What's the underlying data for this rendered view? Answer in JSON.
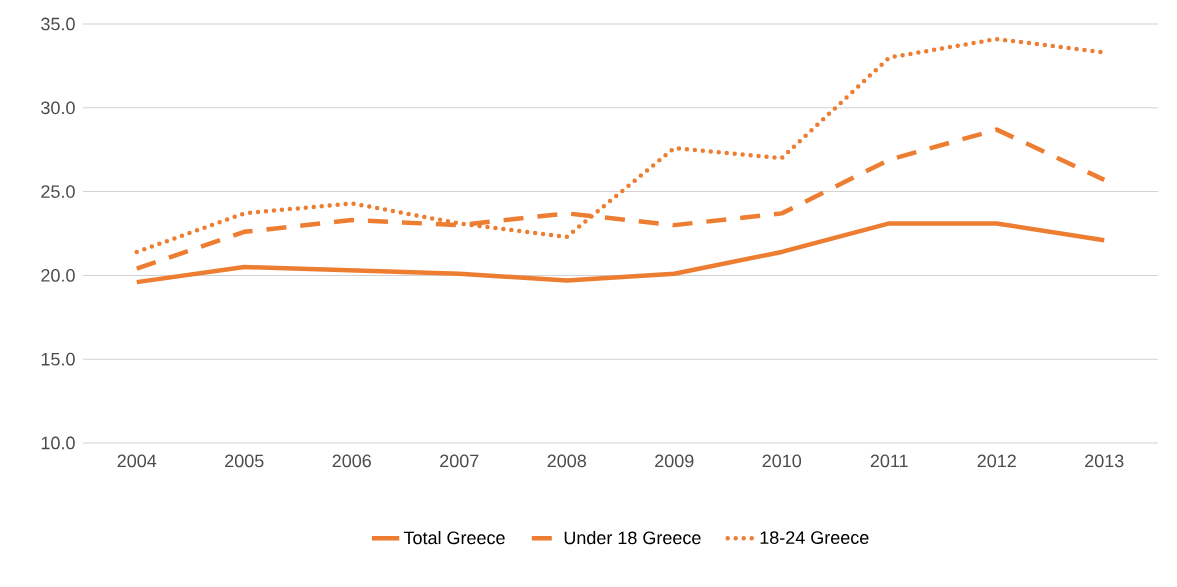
{
  "chart_data": {
    "type": "line",
    "categories": [
      "2004",
      "2005",
      "2006",
      "2007",
      "2008",
      "2009",
      "2010",
      "2011",
      "2012",
      "2013"
    ],
    "series": [
      {
        "name": "Total Greece",
        "color": "#ed7d31",
        "line_style": "solid",
        "values": [
          19.6,
          20.5,
          20.3,
          20.1,
          19.7,
          20.1,
          21.4,
          23.1,
          23.1,
          22.1
        ]
      },
      {
        "name": "Under 18 Greece",
        "color": "#ed7d31",
        "line_style": "dashed",
        "values": [
          20.4,
          22.6,
          23.3,
          23.0,
          23.7,
          23.0,
          23.7,
          26.9,
          28.7,
          25.7
        ]
      },
      {
        "name": "18-24 Greece",
        "color": "#ed7d31",
        "line_style": "dotted",
        "values": [
          21.4,
          23.7,
          24.3,
          23.1,
          22.3,
          27.6,
          27.0,
          33.0,
          34.1,
          33.3
        ]
      }
    ],
    "ylim": [
      10,
      35
    ],
    "yticks": [
      {
        "value": 10,
        "label": "10.0"
      },
      {
        "value": 15,
        "label": "15.0"
      },
      {
        "value": 20,
        "label": "20.0"
      },
      {
        "value": 25,
        "label": "25.0"
      },
      {
        "value": 30,
        "label": "30.0"
      },
      {
        "value": 35,
        "label": "35.0"
      }
    ],
    "grid": "y",
    "legend": "bottom",
    "marker": "none"
  }
}
